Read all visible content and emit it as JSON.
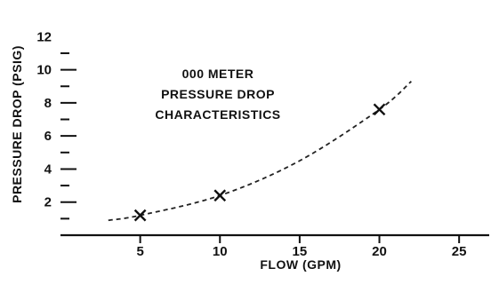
{
  "chart_data": {
    "type": "line",
    "title": "",
    "annotation": [
      "000 METER",
      "PRESSURE DROP",
      "CHARACTERISTICS"
    ],
    "xlabel": "FLOW (GPM)",
    "ylabel": "PRESSURE DROP (PSIG)",
    "xlim": [
      0,
      27
    ],
    "ylim": [
      0,
      12.5
    ],
    "x_ticks": [
      5,
      10,
      15,
      20,
      25
    ],
    "x_tick_labels": [
      "5",
      "10",
      "15",
      "20",
      "25"
    ],
    "y_ticks": [
      1,
      2,
      3,
      4,
      5,
      6,
      7,
      8,
      9,
      10,
      11,
      12
    ],
    "y_tick_labels": [
      "",
      "2",
      "",
      "4",
      "",
      "6",
      "",
      "8",
      "",
      "10",
      "",
      "12"
    ],
    "grid": false,
    "series": [
      {
        "line_style": "dashed",
        "x": [
          3,
          5,
          10,
          15,
          20,
          22
        ],
        "y": [
          0.9,
          1.2,
          2.4,
          4.5,
          7.6,
          9.3
        ]
      }
    ],
    "markers": {
      "symbol": "x",
      "points": [
        {
          "x": 5,
          "y": 1.2
        },
        {
          "x": 10,
          "y": 2.4
        },
        {
          "x": 20,
          "y": 7.6
        }
      ]
    }
  }
}
